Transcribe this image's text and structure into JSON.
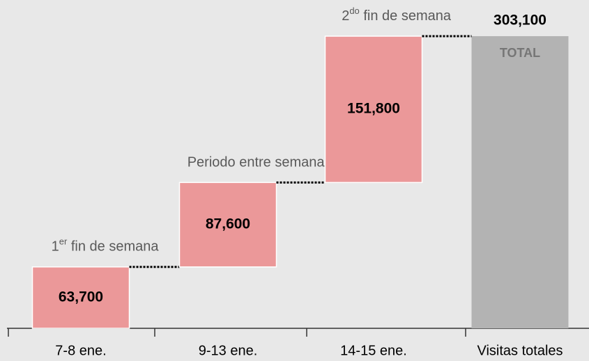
{
  "chart_data": {
    "type": "waterfall",
    "categories": [
      "7-8 ene.",
      "9-13 ene.",
      "14-15 ene.",
      "Visitas totales"
    ],
    "values": [
      63700,
      87600,
      151800,
      303100
    ],
    "value_labels": [
      "63,700",
      "87,600",
      "151,800",
      "303,100"
    ],
    "annotations": [
      [
        "1",
        "er",
        " fin de semana"
      ],
      [
        "Periodo entre semana"
      ],
      [
        "2",
        "do",
        " fin de semana"
      ]
    ],
    "total_label": "TOTAL",
    "color": "#eb9899",
    "total_color": "#b3b3b3"
  }
}
